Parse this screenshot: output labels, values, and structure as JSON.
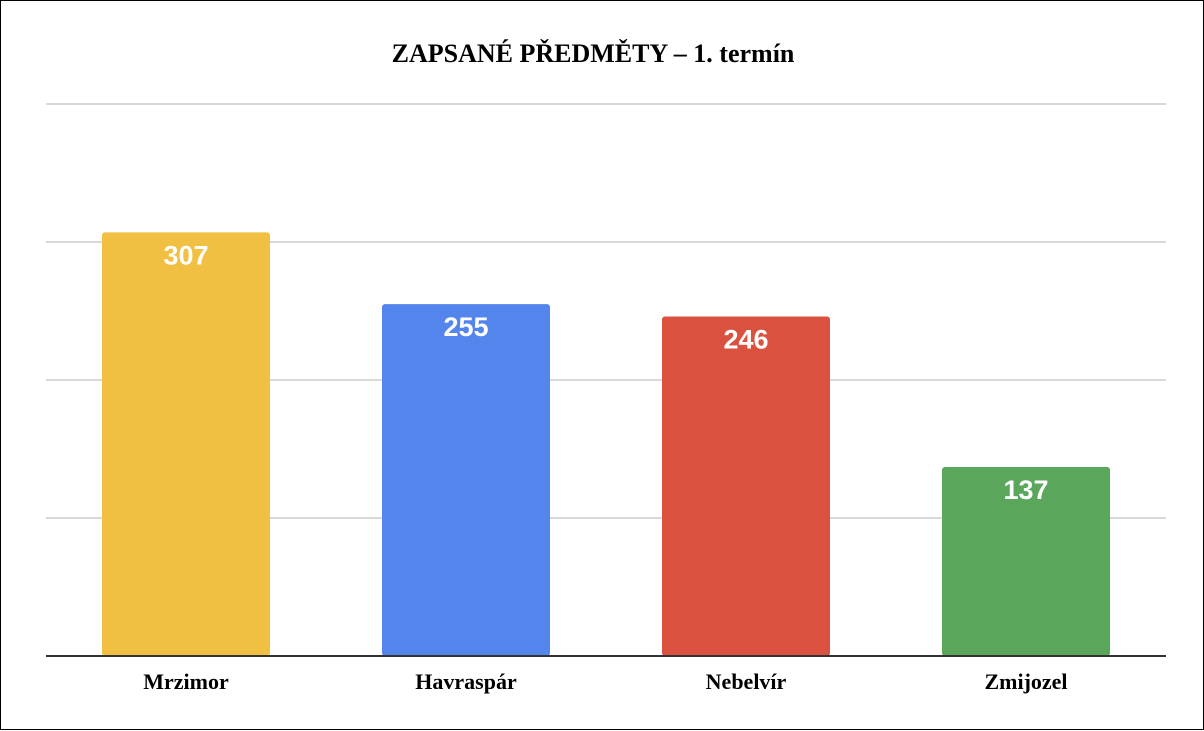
{
  "chart_data": {
    "type": "bar",
    "title": "ZAPSANÉ PŘEDMĚTY – 1. termín",
    "xlabel": "",
    "ylabel": "",
    "categories": [
      "Mrzimor",
      "Havraspár",
      "Nebelvír",
      "Zmijozel"
    ],
    "values": [
      307,
      255,
      246,
      137
    ],
    "bar_colors": [
      "#F1BF42",
      "#5385EC",
      "#DA5140",
      "#5AA75C"
    ],
    "ylim": [
      0,
      400
    ],
    "gridlines": [
      0,
      100,
      200,
      300,
      400
    ],
    "grid": true,
    "y_tick_labels_visible": false,
    "legend": "none",
    "data_labels": "inside-top"
  }
}
